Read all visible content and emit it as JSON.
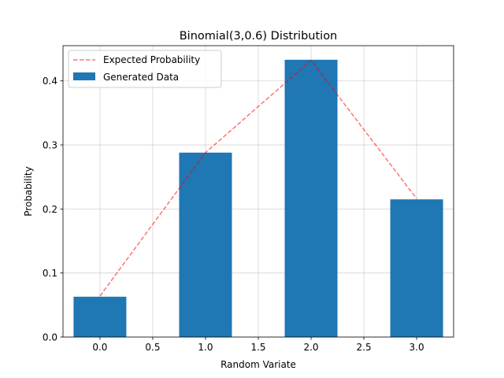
{
  "chart_data": {
    "type": "bar",
    "title": "Binomial(3,0.6) Distribution",
    "xlabel": "Random Variate",
    "ylabel": "Probability",
    "xlim": [
      -0.35,
      3.35
    ],
    "ylim": [
      0,
      0.455
    ],
    "x_ticks": [
      0.0,
      0.5,
      1.0,
      1.5,
      2.0,
      2.5,
      3.0
    ],
    "x_tick_labels": [
      "0.0",
      "0.5",
      "1.0",
      "1.5",
      "2.0",
      "2.5",
      "3.0"
    ],
    "y_ticks": [
      0.0,
      0.1,
      0.2,
      0.3,
      0.4
    ],
    "y_tick_labels": [
      "0.0",
      "0.1",
      "0.2",
      "0.3",
      "0.4"
    ],
    "grid": true,
    "legend_position": "top-left",
    "series": [
      {
        "name": "Generated Data",
        "type": "bar",
        "color": "#1f77b4",
        "bar_width": 0.5,
        "x": [
          0,
          1,
          2,
          3
        ],
        "values": [
          0.063,
          0.288,
          0.433,
          0.215
        ]
      },
      {
        "name": "Expected Probability",
        "type": "line",
        "style": "dashed",
        "color": "#ff0000",
        "alpha": 0.55,
        "x": [
          0,
          1,
          2,
          3
        ],
        "values": [
          0.064,
          0.288,
          0.432,
          0.216
        ]
      }
    ]
  }
}
